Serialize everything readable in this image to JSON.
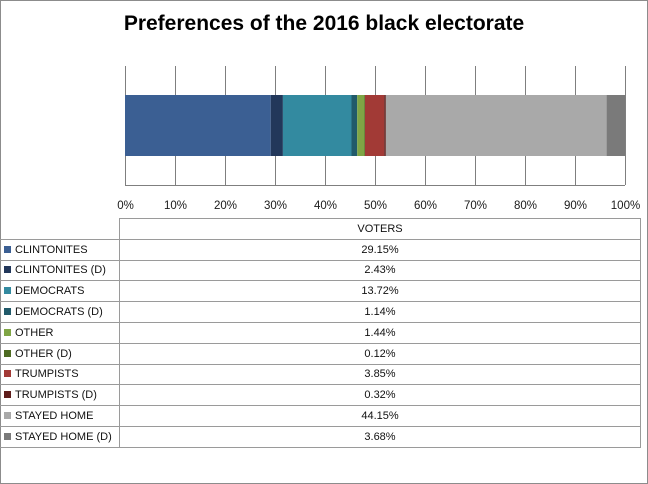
{
  "title": "Preferences of the 2016 black electorate",
  "chart_data": {
    "type": "bar",
    "orientation": "horizontal",
    "stacked": true,
    "percent_stacked": true,
    "categories": [
      ""
    ],
    "xlim": [
      0,
      100
    ],
    "x_ticks": [
      "0%",
      "10%",
      "20%",
      "30%",
      "40%",
      "50%",
      "60%",
      "70%",
      "80%",
      "90%",
      "100%"
    ],
    "grid": "vertical",
    "legend": "data-table-below",
    "table_header": "VOTERS",
    "series": [
      {
        "name": "CLINTONITES",
        "value": 29.15,
        "label": "29.15%",
        "color": "#3b5f93"
      },
      {
        "name": "CLINTONITES (D)",
        "value": 2.43,
        "label": "2.43%",
        "color": "#22375a"
      },
      {
        "name": "DEMOCRATS",
        "value": 13.72,
        "label": "13.72%",
        "color": "#338aa0"
      },
      {
        "name": "DEMOCRATS (D)",
        "value": 1.14,
        "label": "1.14%",
        "color": "#215a6a"
      },
      {
        "name": "OTHER",
        "value": 1.44,
        "label": "1.44%",
        "color": "#7fa545"
      },
      {
        "name": "OTHER (D)",
        "value": 0.12,
        "label": "0.12%",
        "color": "#4d6b22"
      },
      {
        "name": "TRUMPISTS",
        "value": 3.85,
        "label": "3.85%",
        "color": "#a23a36"
      },
      {
        "name": "TRUMPISTS (D)",
        "value": 0.32,
        "label": "0.32%",
        "color": "#5e1d1b"
      },
      {
        "name": "STAYED HOME",
        "value": 44.15,
        "label": "44.15%",
        "color": "#a9a9a9"
      },
      {
        "name": "STAYED HOME (D)",
        "value": 3.68,
        "label": "3.68%",
        "color": "#7a7a7a"
      }
    ]
  }
}
